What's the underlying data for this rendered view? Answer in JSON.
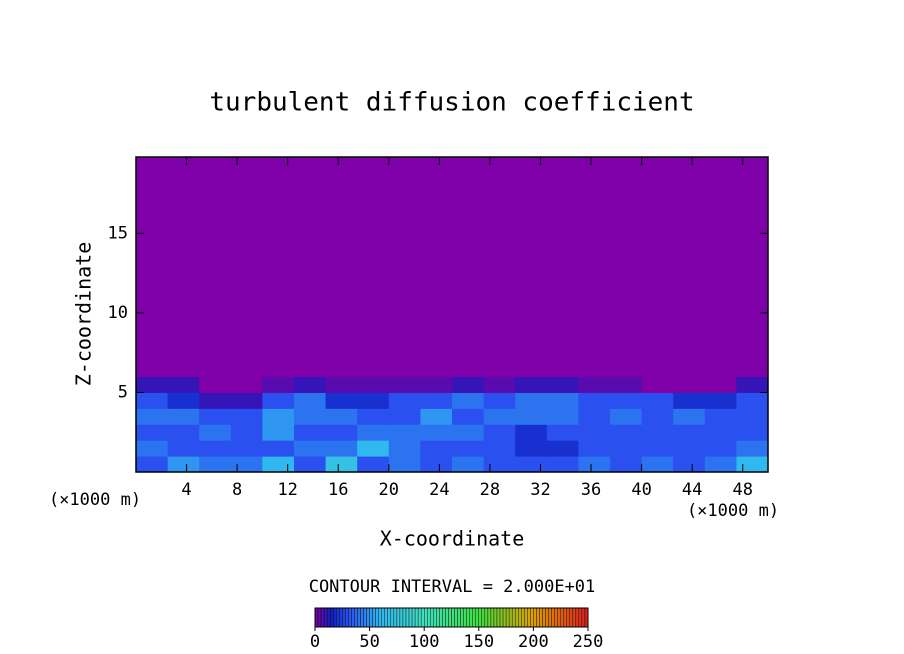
{
  "chart_data": {
    "type": "heatmap",
    "title": "turbulent diffusion coefficient",
    "x_label": "X-coordinate",
    "y_label": "Z-coordinate",
    "x_unit": "(×1000 m)",
    "xlim": [
      0,
      50
    ],
    "xticks": [
      4,
      8,
      12,
      16,
      20,
      24,
      28,
      32,
      36,
      40,
      44,
      48
    ],
    "ylim": [
      0,
      19.8
    ],
    "yticks": [
      5,
      10,
      15
    ],
    "x_bins": [
      0,
      2.5,
      5,
      7.5,
      10,
      12.5,
      15,
      17.5,
      20,
      22.5,
      25,
      27.5,
      30,
      32.5,
      35,
      37.5,
      40,
      42.5,
      45,
      47.5,
      50
    ],
    "y_bins": [
      0,
      1,
      2,
      3,
      4,
      5,
      6,
      19.8
    ],
    "values": [
      [
        30,
        50,
        40,
        40,
        60,
        30,
        70,
        30,
        40,
        30,
        40,
        30,
        30,
        30,
        40,
        30,
        40,
        30,
        40,
        60
      ],
      [
        40,
        30,
        30,
        30,
        30,
        40,
        40,
        60,
        40,
        30,
        30,
        30,
        20,
        20,
        30,
        30,
        30,
        30,
        30,
        40
      ],
      [
        30,
        30,
        40,
        30,
        50,
        30,
        30,
        40,
        40,
        40,
        40,
        30,
        20,
        30,
        30,
        30,
        30,
        30,
        30,
        30
      ],
      [
        40,
        40,
        30,
        30,
        50,
        40,
        40,
        30,
        30,
        50,
        30,
        40,
        40,
        40,
        30,
        40,
        30,
        40,
        30,
        30
      ],
      [
        30,
        20,
        10,
        10,
        30,
        40,
        20,
        20,
        30,
        30,
        40,
        30,
        40,
        40,
        30,
        30,
        30,
        20,
        20,
        30
      ],
      [
        10,
        10,
        0,
        0,
        5,
        10,
        5,
        5,
        5,
        5,
        10,
        5,
        10,
        10,
        5,
        5,
        0,
        0,
        0,
        10
      ],
      [
        0,
        0,
        0,
        0,
        0,
        0,
        0,
        0,
        0,
        0,
        0,
        0,
        0,
        0,
        0,
        0,
        0,
        0,
        0,
        0
      ]
    ],
    "contour_label": "CONTOUR INTERVAL = 2.000E+01",
    "colorbar": {
      "lim": [
        0,
        250
      ],
      "ticks": [
        0,
        50,
        100,
        150,
        200,
        250
      ],
      "stops": [
        [
          0,
          "#7f00a8"
        ],
        [
          15,
          "#1020c0"
        ],
        [
          30,
          "#2a50f0"
        ],
        [
          60,
          "#30b8f0"
        ],
        [
          100,
          "#40e0c0"
        ],
        [
          150,
          "#40e040"
        ],
        [
          200,
          "#e0a000"
        ],
        [
          250,
          "#e02020"
        ]
      ]
    }
  }
}
